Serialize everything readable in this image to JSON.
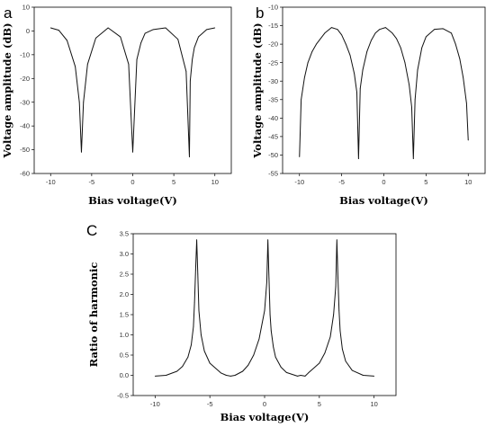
{
  "chart_data": [
    {
      "panel": "a",
      "type": "line",
      "xlabel": "Bias voltage(V)",
      "ylabel": "Voltage amplitude (dB)",
      "xlim": [
        -12,
        12
      ],
      "ylim": [
        -60,
        10
      ],
      "xticks": [
        -10,
        -5,
        0,
        5,
        10
      ],
      "yticks": [
        10,
        0,
        -10,
        -20,
        -30,
        -40,
        -50,
        -60
      ],
      "grid": false,
      "series": [
        {
          "x": [
            -10,
            -9.0,
            -8.0,
            -7.0,
            -6.5,
            -6.25,
            -6.0,
            -5.5,
            -4.5,
            -3.0,
            -1.5,
            -0.5,
            0.0,
            0.5,
            1.0,
            1.5,
            2.5,
            4.0,
            5.5,
            6.5,
            6.9,
            7.0,
            7.25,
            7.5,
            8.0,
            9.0,
            10.0
          ],
          "y": [
            1.3,
            0.3,
            -4,
            -15,
            -30,
            -51,
            -30,
            -14,
            -3,
            1.3,
            -2.5,
            -14,
            -51,
            -12,
            -5,
            -1,
            0.6,
            1.3,
            -3.5,
            -17,
            -53,
            -21,
            -12,
            -7,
            -2.5,
            0.6,
            1.3
          ]
        }
      ]
    },
    {
      "panel": "b",
      "type": "line",
      "xlabel": "Bias voltage(V)",
      "ylabel": "Voltage amplitude (dB)",
      "xlim": [
        -12,
        12
      ],
      "ylim": [
        -55,
        -10
      ],
      "xticks": [
        -10,
        -5,
        0,
        5,
        10
      ],
      "yticks": [
        -10,
        -15,
        -20,
        -25,
        -30,
        -35,
        -40,
        -45,
        -50,
        -55
      ],
      "grid": false,
      "series": [
        {
          "x": [
            -10.0,
            -9.8,
            -9.4,
            -9.0,
            -8.5,
            -8.0,
            -7.0,
            -6.2,
            -5.5,
            -5.0,
            -4.5,
            -4.0,
            -3.5,
            -3.2,
            -3.0,
            -2.8,
            -2.5,
            -2.0,
            -1.5,
            -1.0,
            -0.5,
            0.2,
            1.0,
            1.5,
            2.0,
            2.5,
            3.0,
            3.3,
            3.5,
            3.7,
            4.0,
            4.5,
            5.0,
            6.0,
            7.0,
            8.0,
            8.5,
            9.0,
            9.4,
            9.8,
            10.0
          ],
          "y": [
            -50.5,
            -35,
            -29,
            -25,
            -22,
            -20,
            -17,
            -15.5,
            -16,
            -17.5,
            -20,
            -23,
            -28,
            -33,
            -51,
            -32,
            -27,
            -22,
            -19,
            -17,
            -16,
            -15.5,
            -17,
            -18.5,
            -21,
            -25,
            -31,
            -37,
            -51,
            -35,
            -27,
            -21,
            -18,
            -16,
            -15.8,
            -17,
            -20,
            -24,
            -29,
            -36,
            -46
          ]
        }
      ]
    },
    {
      "panel": "C",
      "type": "line",
      "xlabel": "Bias voltage(V)",
      "ylabel": "Ratio of harmonic",
      "xlim": [
        -12,
        12
      ],
      "ylim": [
        -0.5,
        3.5
      ],
      "xticks": [
        -10,
        -5,
        0,
        5,
        10
      ],
      "yticks": [
        3.5,
        3.0,
        2.5,
        2.0,
        1.5,
        1.0,
        0.5,
        0.0,
        -0.5
      ],
      "grid": false,
      "series": [
        {
          "x": [
            -10.0,
            -9.0,
            -8.0,
            -7.5,
            -7.0,
            -6.7,
            -6.5,
            -6.4,
            -6.3,
            -6.2,
            -6.1,
            -6.0,
            -5.8,
            -5.5,
            -5.0,
            -4.0,
            -3.5,
            -3.1,
            -2.7,
            -2.0,
            -1.5,
            -1.0,
            -0.5,
            0.0,
            0.2,
            0.3,
            0.4,
            0.5,
            0.6,
            0.8,
            1.0,
            1.5,
            2.0,
            3.0,
            3.3,
            3.7,
            4.0,
            5.0,
            5.5,
            6.0,
            6.3,
            6.5,
            6.6,
            6.7,
            6.8,
            6.9,
            7.1,
            7.4,
            8.0,
            9.0,
            10.0
          ],
          "y": [
            -0.02,
            0.0,
            0.1,
            0.22,
            0.45,
            0.75,
            1.2,
            1.8,
            2.6,
            3.35,
            2.5,
            1.6,
            1.0,
            0.6,
            0.3,
            0.06,
            0.0,
            -0.02,
            0.0,
            0.1,
            0.25,
            0.5,
            0.9,
            1.6,
            2.3,
            3.35,
            2.4,
            1.5,
            1.1,
            0.7,
            0.45,
            0.2,
            0.07,
            -0.02,
            0.0,
            -0.02,
            0.06,
            0.3,
            0.55,
            0.95,
            1.5,
            2.2,
            3.35,
            2.4,
            1.6,
            1.1,
            0.65,
            0.35,
            0.12,
            0.0,
            -0.02
          ]
        }
      ]
    }
  ]
}
